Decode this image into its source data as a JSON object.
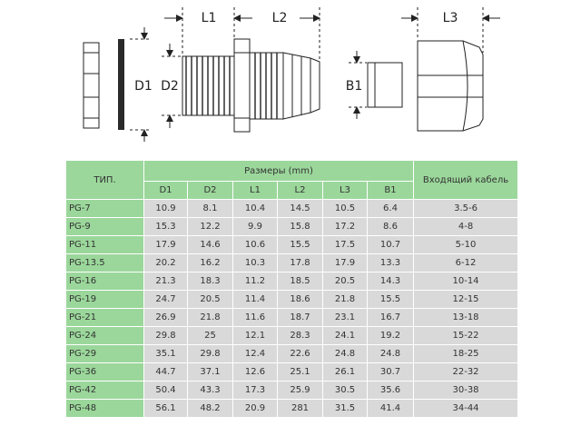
{
  "drawing": {
    "labels": {
      "l1": "L1",
      "l2": "L2",
      "l3": "L3",
      "d1": "D1",
      "d2": "D2",
      "b1": "B1"
    }
  },
  "table": {
    "type_header": "ТИП.",
    "dimensions_header": "Размеры (mm)",
    "cable_header": "Входящий кабель",
    "columns": [
      "D1",
      "D2",
      "L1",
      "L2",
      "L3",
      "B1"
    ],
    "rows": [
      {
        "type": "PG-7",
        "values": [
          "10.9",
          "8.1",
          "10.4",
          "14.5",
          "10.5",
          "6.4"
        ],
        "cable": "3.5-6"
      },
      {
        "type": "PG-9",
        "values": [
          "15.3",
          "12.2",
          "9.9",
          "15.8",
          "17.2",
          "8.6"
        ],
        "cable": "4-8"
      },
      {
        "type": "PG-11",
        "values": [
          "17.9",
          "14.6",
          "10.6",
          "15.5",
          "17.5",
          "10.7"
        ],
        "cable": "5-10"
      },
      {
        "type": "PG-13.5",
        "values": [
          "20.2",
          "16.2",
          "10.3",
          "17.8",
          "17.9",
          "13.3"
        ],
        "cable": "6-12"
      },
      {
        "type": "PG-16",
        "values": [
          "21.3",
          "18.3",
          "11.2",
          "18.5",
          "20.5",
          "14.3"
        ],
        "cable": "10-14"
      },
      {
        "type": "PG-19",
        "values": [
          "24.7",
          "20.5",
          "11.4",
          "18.6",
          "21.8",
          "15.5"
        ],
        "cable": "12-15"
      },
      {
        "type": "PG-21",
        "values": [
          "26.9",
          "21.8",
          "11.6",
          "18.7",
          "23.1",
          "16.7"
        ],
        "cable": "13-18"
      },
      {
        "type": "PG-24",
        "values": [
          "29.8",
          "25",
          "12.1",
          "28.3",
          "24.1",
          "19.2"
        ],
        "cable": "15-22"
      },
      {
        "type": "PG-29",
        "values": [
          "35.1",
          "29.8",
          "12.4",
          "22.6",
          "24.8",
          "24.8"
        ],
        "cable": "18-25"
      },
      {
        "type": "PG-36",
        "values": [
          "44.7",
          "37.1",
          "12.6",
          "25.1",
          "26.1",
          "30.7"
        ],
        "cable": "22-32"
      },
      {
        "type": "PG-42",
        "values": [
          "50.4",
          "43.3",
          "17.3",
          "25.9",
          "30.5",
          "35.6"
        ],
        "cable": "30-38"
      },
      {
        "type": "PG-48",
        "values": [
          "56.1",
          "48.2",
          "20.9",
          "281",
          "31.5",
          "41.4"
        ],
        "cable": "34-44"
      }
    ]
  },
  "colors": {
    "header_green": "#9bd79b",
    "cell_gray": "#d9d9d9",
    "line": "#222222"
  }
}
